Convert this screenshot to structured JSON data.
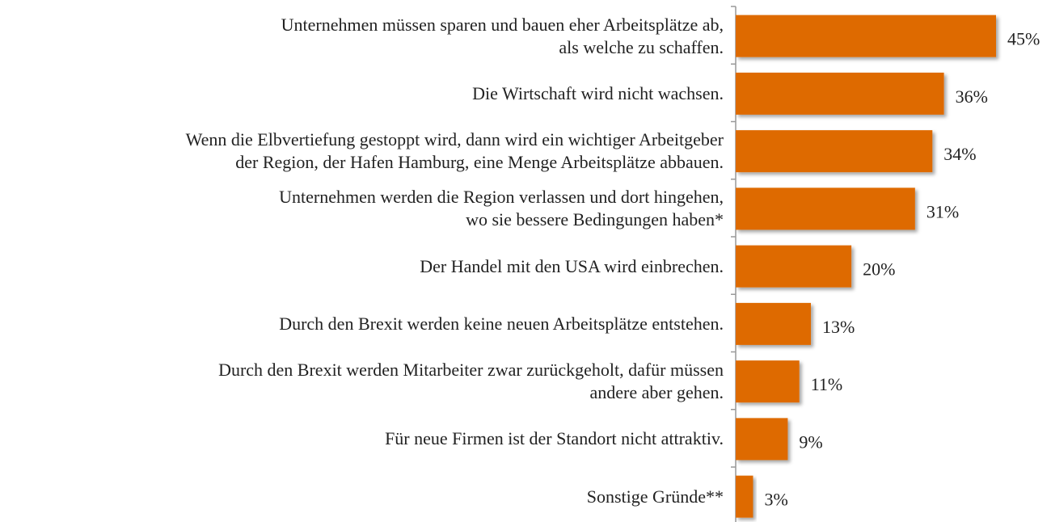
{
  "chart_data": {
    "type": "bar",
    "orientation": "horizontal",
    "categories": [
      "Unternehmen müssen sparen und bauen eher Arbeitsplätze ab,\nals welche zu schaffen.",
      "Die Wirtschaft wird nicht wachsen.",
      "Wenn die Elbvertiefung gestoppt wird, dann wird ein wichtiger Arbeitgeber\nder Region, der Hafen Hamburg, eine Menge Arbeitsplätze abbauen.",
      "Unternehmen werden die Region verlassen und dort hingehen,\nwo sie bessere Bedingungen haben*",
      "Der Handel mit den USA wird einbrechen.",
      "Durch den Brexit werden keine neuen Arbeitsplätze entstehen.",
      "Durch den Brexit werden Mitarbeiter zwar zurückgeholt, dafür müssen\nandere aber gehen.",
      "Für neue Firmen ist der Standort nicht attraktiv.",
      "Sonstige Gründe**"
    ],
    "values": [
      45,
      36,
      34,
      31,
      20,
      13,
      11,
      9,
      3
    ],
    "value_labels": [
      "45%",
      "36%",
      "34%",
      "31%",
      "20%",
      "13%",
      "11%",
      "9%",
      "3%"
    ],
    "color": "#de6b00",
    "xlim": [
      0,
      45
    ]
  }
}
